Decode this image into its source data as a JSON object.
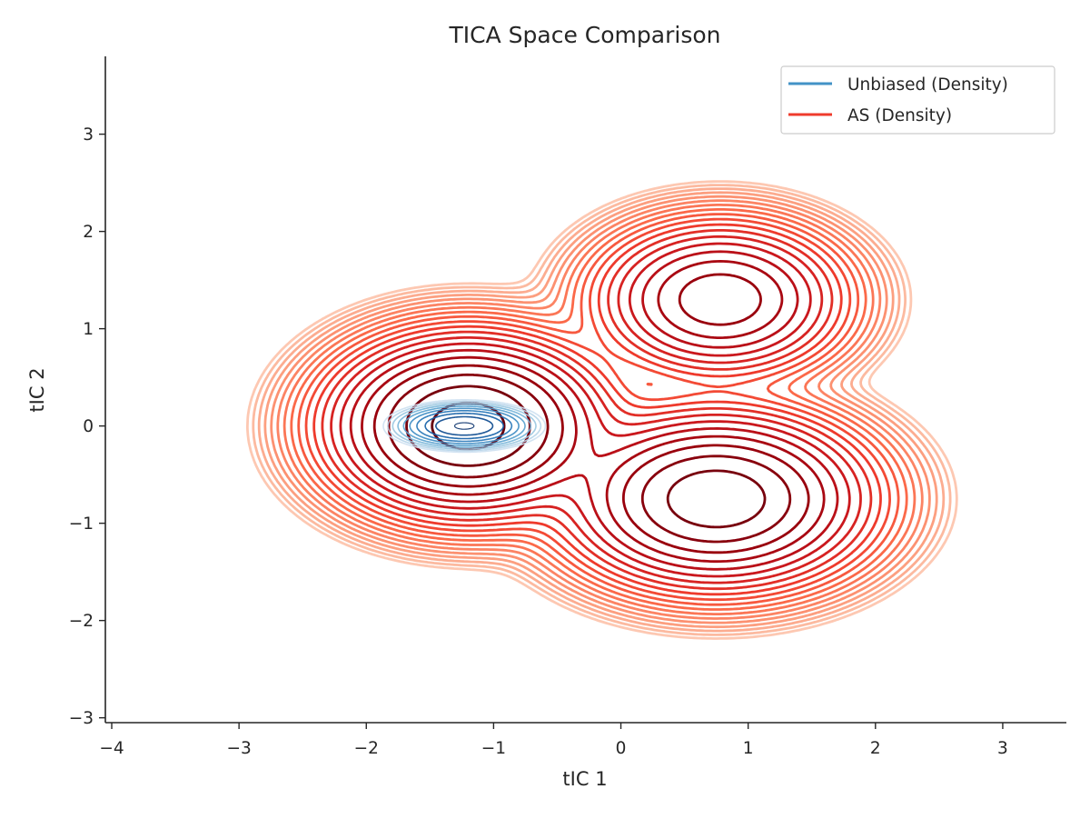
{
  "chart_data": {
    "type": "contour",
    "title": "TICA Space Comparison",
    "xlabel": "tIC 1",
    "ylabel": "tIC 2",
    "xlim": [
      -4.05,
      3.5
    ],
    "ylim": [
      -3.05,
      3.8
    ],
    "xticks": [
      -4,
      -3,
      -2,
      -1,
      0,
      1,
      2,
      3
    ],
    "yticks": [
      -3,
      -2,
      -1,
      0,
      1,
      2,
      3
    ],
    "xtick_labels": [
      "−4",
      "−3",
      "−2",
      "−1",
      "0",
      "1",
      "2",
      "3"
    ],
    "ytick_labels": [
      "−3",
      "−2",
      "−1",
      "0",
      "1",
      "2",
      "3"
    ],
    "grid": false,
    "legend_position": "top-right",
    "series": [
      {
        "name": "Unbiased (Density)",
        "color": "#4292c6",
        "colormap": "Blues",
        "components": [
          {
            "weight": 1.0,
            "mean": [
              -1.23,
              0.0
            ],
            "sd": [
              0.26,
              0.11
            ]
          }
        ],
        "levels": 10
      },
      {
        "name": "AS (Density)",
        "color": "#ef3b2c",
        "colormap": "Reds",
        "components": [
          {
            "weight": 1.0,
            "mean": [
              -1.2,
              0.0
            ],
            "sd": [
              0.45,
              0.38
            ]
          },
          {
            "weight": 0.75,
            "mean": [
              0.75,
              -0.75
            ],
            "sd": [
              0.5,
              0.38
            ]
          },
          {
            "weight": 0.35,
            "mean": [
              0.78,
              1.3
            ],
            "sd": [
              0.42,
              0.34
            ]
          }
        ],
        "levels": 20
      }
    ]
  }
}
